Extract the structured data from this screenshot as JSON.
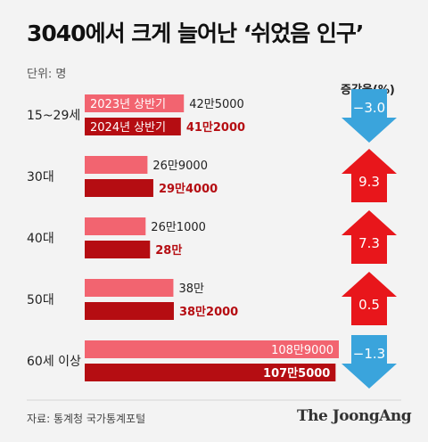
{
  "title": "3040에서 크게 늘어난 ‘쉬었음 인구’",
  "unit_label": "단위: 명",
  "change_header": "증감율(%)",
  "source": "자료: 통계청 국가통계포털",
  "brand": "The JoongAng",
  "colors": {
    "bar_2023": "#f26470",
    "bar_2024": "#b50d12",
    "label_2024": "#b50d12",
    "arrow_up": "#e8161b",
    "arrow_down": "#3aa4dc",
    "background": "#f3f3f3"
  },
  "chart_data": {
    "type": "bar",
    "orientation": "horizontal",
    "categories": [
      "15~29세",
      "30대",
      "40대",
      "50대",
      "60세 이상"
    ],
    "series": [
      {
        "name": "2023년 상반기",
        "values": [
          425000,
          269000,
          261000,
          380000,
          1089000
        ],
        "value_labels": [
          "42만5000",
          "26만9000",
          "26만1000",
          "38만",
          "108만9000"
        ]
      },
      {
        "name": "2024년 상반기",
        "values": [
          412000,
          294000,
          280000,
          382000,
          1075000
        ],
        "value_labels": [
          "41만2000",
          "29만4000",
          "28만",
          "38만2000",
          "107만5000"
        ]
      }
    ],
    "change_percent": [
      -3.0,
      9.3,
      7.3,
      0.5,
      -1.3
    ],
    "change_labels": [
      "−3.0",
      "9.3",
      "7.3",
      "0.5",
      "−1.3"
    ],
    "xlim": [
      0,
      1150000
    ]
  }
}
